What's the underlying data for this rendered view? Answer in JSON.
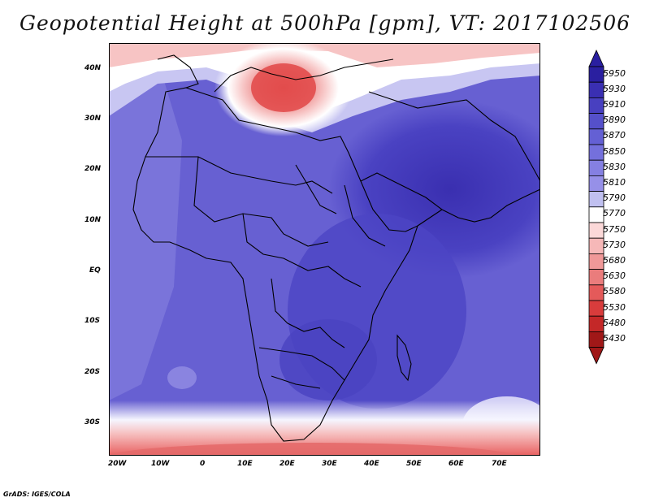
{
  "title": "Geopotential Height at 500hPa [gpm], VT: 2017102506",
  "credit": "GrADS: IGES/COLA",
  "map": {
    "lat_labels": [
      "40N",
      "30N",
      "20N",
      "10N",
      "EQ",
      "10S",
      "20S",
      "30S"
    ],
    "lon_labels": [
      "20W",
      "10W",
      "0",
      "10E",
      "20E",
      "30E",
      "40E",
      "50E",
      "60E",
      "70E"
    ]
  },
  "colorbar": {
    "levels": [
      "5950",
      "5930",
      "5910",
      "5890",
      "5870",
      "5850",
      "5830",
      "5810",
      "5790",
      "5770",
      "5750",
      "5730",
      "5680",
      "5630",
      "5580",
      "5530",
      "5480",
      "5430"
    ],
    "colors": [
      "#2a1fa0",
      "#3a2fb2",
      "#4840c0",
      "#5550ca",
      "#6460d4",
      "#7470dc",
      "#8580e2",
      "#9690e8",
      "#c0c0f0",
      "#ffffff",
      "#fbd8d8",
      "#f6b8b8",
      "#f09898",
      "#ea7c7c",
      "#e45a5a",
      "#d83c3c",
      "#c42828",
      "#a01818"
    ]
  }
}
